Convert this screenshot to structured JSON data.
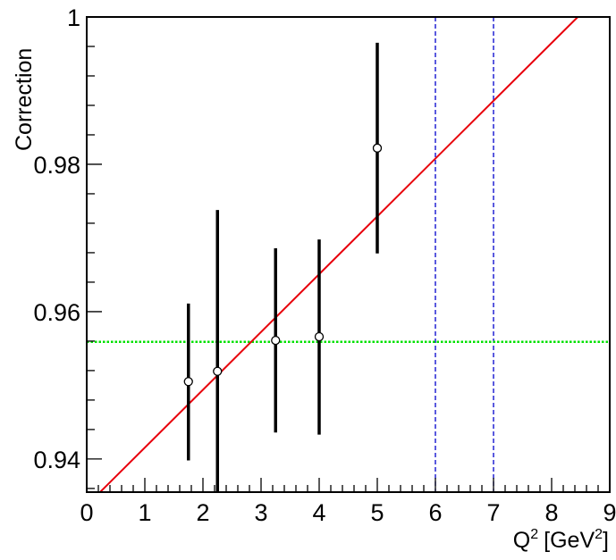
{
  "chart_data": {
    "type": "scatter",
    "xlabel": "Q",
    "xlabel_sup": "2",
    "xlabel_unit_pre": "[GeV",
    "xlabel_unit_sup": "2",
    "xlabel_unit_post": "]",
    "ylabel": "Correction",
    "xlim": [
      0,
      9
    ],
    "ylim": [
      0.9355,
      1.0
    ],
    "x_ticks": [
      "0",
      "1",
      "2",
      "3",
      "4",
      "5",
      "6",
      "7",
      "8",
      "9"
    ],
    "y_ticks": [
      "0.94",
      "0.96",
      "0.98",
      "1"
    ],
    "y_tick_values": [
      0.94,
      0.96,
      0.98,
      1.0
    ],
    "grid": false,
    "points": [
      {
        "x": 1.75,
        "y": 0.9505,
        "err_low": 0.9398,
        "err_high": 0.9611
      },
      {
        "x": 2.25,
        "y": 0.9519,
        "err_low": 0.9355,
        "err_high": 0.9738
      },
      {
        "x": 3.25,
        "y": 0.9561,
        "err_low": 0.9436,
        "err_high": 0.9686
      },
      {
        "x": 4.0,
        "y": 0.9566,
        "err_low": 0.9433,
        "err_high": 0.9698
      },
      {
        "x": 5.0,
        "y": 0.9822,
        "err_low": 0.9679,
        "err_high": 0.9965
      }
    ],
    "fit_line": {
      "x1": 0.0,
      "y1": 0.9337,
      "x2": 8.45,
      "y2": 1.0,
      "color": "#e8000b"
    },
    "constant_line": {
      "y": 0.9559,
      "color": "#00e000"
    },
    "vertical_lines": [
      {
        "x": 6,
        "color": "#0000cc"
      },
      {
        "x": 7,
        "color": "#0000cc"
      }
    ]
  }
}
